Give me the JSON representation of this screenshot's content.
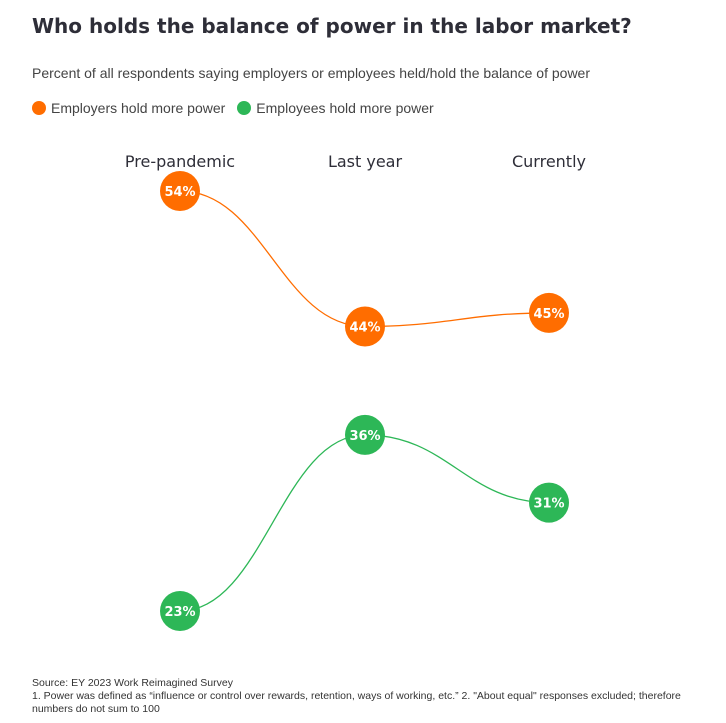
{
  "colors": {
    "employers": "#ff6d00",
    "employees": "#2db757"
  },
  "chart_data": {
    "type": "line",
    "title": "Who holds the balance of power in the labor market?",
    "subtitle": "Percent of all respondents saying employers or employees held/hold the balance of power",
    "categories": [
      "Pre-pandemic",
      "Last year",
      "Currently"
    ],
    "series": [
      {
        "name": "Employers hold more power",
        "values": [
          54,
          44,
          45
        ],
        "labels": [
          "54%",
          "44%",
          "45%"
        ]
      },
      {
        "name": "Employees hold more power",
        "values": [
          23,
          36,
          31
        ],
        "labels": [
          "23%",
          "36%",
          "31%"
        ]
      }
    ],
    "ylim": [
      23,
      54
    ],
    "legend": "top-left"
  },
  "footer": {
    "source": "Source: EY 2023 Work Reimagined Survey",
    "note": "1. Power was defined as “influence or control over rewards, retention, ways of working, etc.” 2. \"About equal\" responses excluded; therefore numbers do not sum to 100"
  }
}
